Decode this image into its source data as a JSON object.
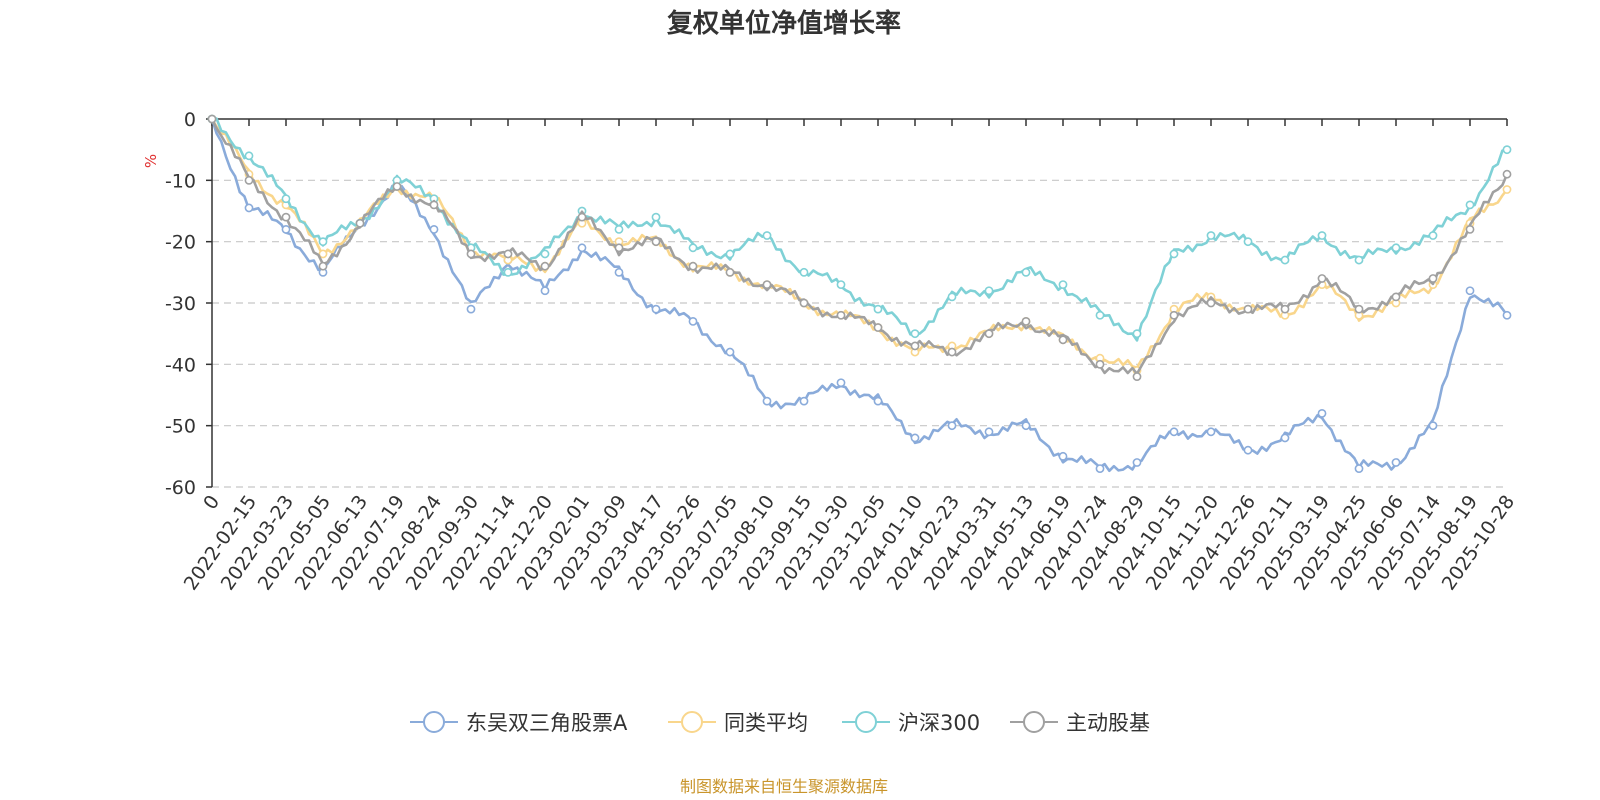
{
  "chart_data": {
    "type": "line",
    "title": "复权单位净值增长率",
    "ylabel": "%",
    "xlabel": "",
    "ylim": [
      -60,
      0
    ],
    "yticks": [
      0,
      -10,
      -20,
      -30,
      -40,
      -50,
      -60
    ],
    "ytick_labels": [
      "0",
      "-10",
      "-20",
      "-30",
      "-40",
      "-50",
      "-60"
    ],
    "grid": true,
    "legend_position": "bottom",
    "x_tick_labels": [
      "0",
      "2022-02-15",
      "2022-03-23",
      "2022-05-05",
      "2022-06-13",
      "2022-07-19",
      "2022-08-24",
      "2022-09-30",
      "2022-11-14",
      "2022-12-20",
      "2023-02-01",
      "2023-03-09",
      "2023-04-17",
      "2023-05-26",
      "2023-07-05",
      "2023-08-10",
      "2023-09-15",
      "2023-10-30",
      "2023-12-05",
      "2024-01-10",
      "2024-02-23",
      "2024-03-31",
      "2024-05-13",
      "2024-06-19",
      "2024-07-24",
      "2024-08-29",
      "2024-10-15",
      "2024-11-20",
      "2024-12-26",
      "2025-02-11",
      "2025-03-19",
      "2025-04-25",
      "2025-06-06",
      "2025-07-14",
      "2025-08-19",
      "2025-10-28"
    ],
    "x": [
      "0",
      "2022-02-15",
      "2022-03-23",
      "2022-05-05",
      "2022-06-13",
      "2022-07-19",
      "2022-08-24",
      "2022-09-30",
      "2022-11-14",
      "2022-12-20",
      "2023-02-01",
      "2023-03-09",
      "2023-04-17",
      "2023-05-26",
      "2023-07-05",
      "2023-08-10",
      "2023-09-15",
      "2023-10-30",
      "2023-12-05",
      "2024-01-10",
      "2024-02-23",
      "2024-03-31",
      "2024-05-13",
      "2024-06-19",
      "2024-07-24",
      "2024-08-29",
      "2024-10-15",
      "2024-11-20",
      "2024-12-26",
      "2025-02-11",
      "2025-03-19",
      "2025-04-25",
      "2025-06-06",
      "2025-07-14",
      "2025-08-19",
      "2025-10-28"
    ],
    "series": [
      {
        "name": "东吴双三角股票A",
        "color": "#8aabda",
        "values": [
          0,
          -14.5,
          -18,
          -25,
          -17,
          -11,
          -18,
          -31,
          -23,
          -28,
          -21,
          -25,
          -31,
          -33,
          -38,
          -46,
          -46,
          -43,
          -46,
          -52,
          -50,
          -51,
          -50,
          -55,
          -57,
          -56,
          -51,
          -51,
          -54,
          -52,
          -48,
          -57,
          -56,
          -50,
          -28,
          -32
        ]
      },
      {
        "name": "同类平均",
        "color": "#f9d68c",
        "values": [
          0,
          -9,
          -14,
          -22,
          -17,
          -11,
          -13,
          -21,
          -23,
          -24,
          -17,
          -20,
          -20,
          -24,
          -25,
          -27,
          -30,
          -32,
          -34,
          -38,
          -37,
          -35,
          -33,
          -36,
          -39,
          -41,
          -31,
          -29,
          -31,
          -32,
          -27,
          -32,
          -30,
          -27,
          -17,
          -11.5
        ]
      },
      {
        "name": "沪深300",
        "color": "#7fd1d6",
        "values": [
          0,
          -6,
          -13,
          -20,
          -17,
          -10,
          -13,
          -21,
          -25,
          -22,
          -15,
          -18,
          -16,
          -21,
          -22,
          -19,
          -25,
          -27,
          -31,
          -35,
          -29,
          -28,
          -25,
          -27,
          -32,
          -35,
          -22,
          -19,
          -20,
          -23,
          -19,
          -23,
          -21,
          -19,
          -14,
          -5
        ]
      },
      {
        "name": "主动股基",
        "color": "#a0a0a0",
        "values": [
          0,
          -10,
          -16,
          -24,
          -17,
          -11,
          -14,
          -22,
          -22,
          -24,
          -16,
          -21,
          -20,
          -24,
          -25,
          -27,
          -30,
          -32,
          -34,
          -37,
          -38,
          -35,
          -33,
          -36,
          -40,
          -42,
          -32,
          -30,
          -31,
          -31,
          -26,
          -31,
          -29,
          -26,
          -18,
          -9
        ]
      }
    ]
  },
  "footer": {
    "source": "制图数据来自恒生聚源数据库"
  }
}
